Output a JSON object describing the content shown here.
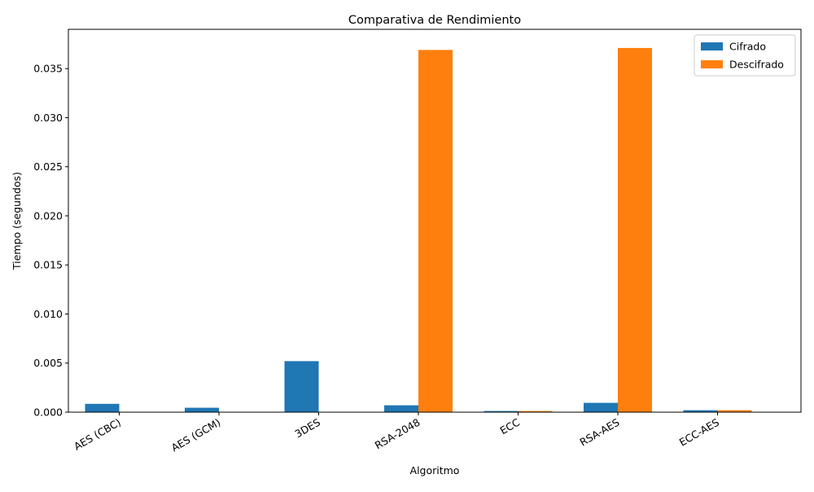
{
  "chart_data": {
    "type": "bar",
    "title": "Comparativa de Rendimiento",
    "xlabel": "Algoritmo",
    "ylabel": "Tiempo (segundos)",
    "categories": [
      "AES (CBC)",
      "AES (GCM)",
      "3DES",
      "RSA-2048",
      "ECC",
      "RSA-AES",
      "ECC-AES"
    ],
    "series": [
      {
        "name": "Cifrado",
        "color": "#1f77b4",
        "values": [
          0.00085,
          0.00045,
          0.0052,
          0.0007,
          0.00012,
          0.00095,
          0.0002
        ]
      },
      {
        "name": "Descifrado",
        "color": "#ff7f0e",
        "values": [
          1e-05,
          1e-05,
          1e-05,
          0.0369,
          0.00012,
          0.0371,
          0.0002
        ]
      }
    ],
    "ylim": [
      0,
      0.039
    ],
    "yticks": [
      "0.000",
      "0.005",
      "0.010",
      "0.015",
      "0.020",
      "0.025",
      "0.030",
      "0.035"
    ],
    "ytick_values": [
      0,
      0.005,
      0.01,
      0.015,
      0.02,
      0.025,
      0.03,
      0.035
    ],
    "legend_position": "top-right",
    "grid": false
  }
}
